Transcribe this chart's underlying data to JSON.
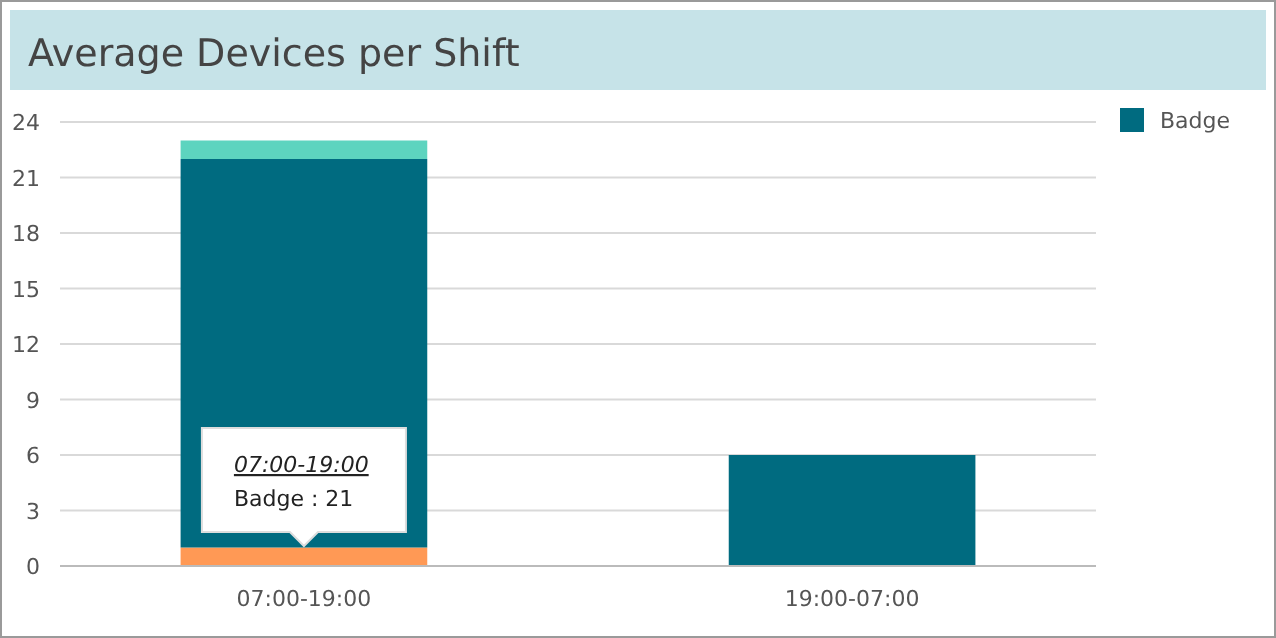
{
  "chart_data": {
    "type": "bar",
    "title": "Average Devices per Shift",
    "categories": [
      "07:00-19:00",
      "19:00-07:00"
    ],
    "stacked": true,
    "series": [
      {
        "color": "#ff9955",
        "values": [
          1,
          0
        ]
      },
      {
        "name": "Badge",
        "color": "#006b80",
        "values": [
          21,
          6
        ]
      },
      {
        "color": "#5dd4bf",
        "values": [
          1,
          0
        ]
      }
    ],
    "ylim": [
      0,
      24
    ],
    "yticks": [
      0,
      3,
      6,
      9,
      12,
      15,
      18,
      21,
      24
    ],
    "grid": "y",
    "legend": "top right",
    "annotations": [
      "07:00-19:00",
      "Badge : 21"
    ]
  }
}
